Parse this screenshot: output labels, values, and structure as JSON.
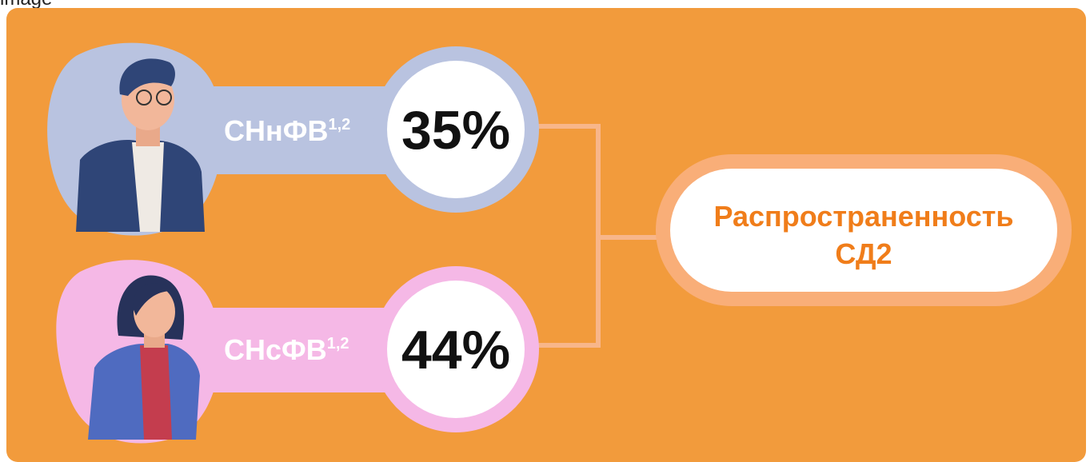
{
  "caption": "image",
  "groups": [
    {
      "label": "СНнФВ",
      "note": "1,2",
      "value": "35%"
    },
    {
      "label": "СНсФВ",
      "note": "1,2",
      "value": "44%"
    }
  ],
  "target": {
    "lines": [
      "Распространенность",
      "СД2"
    ]
  }
}
